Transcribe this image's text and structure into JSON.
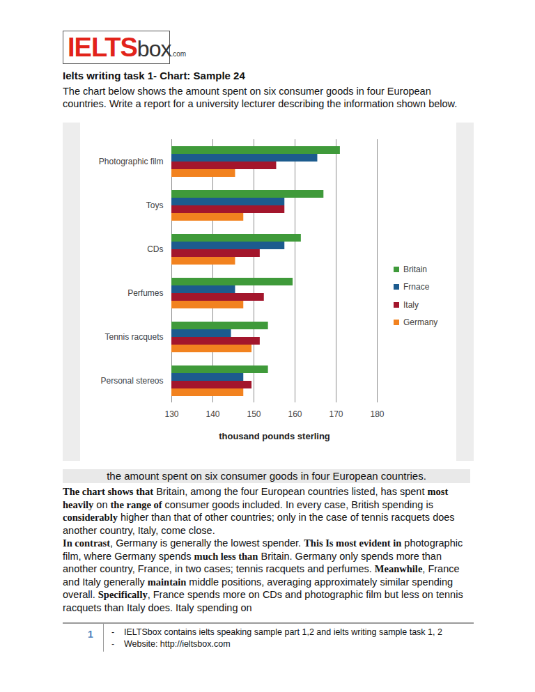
{
  "logo": {
    "main": "IELTS",
    "sub": "box",
    "suffix": ".com"
  },
  "heading": "Ielts writing task 1- Chart: Sample 24",
  "prompt": "The chart below shows the amount spent on six consumer goods in four European countries. Write a report for a university lecturer describing the information shown below.",
  "chart_data": {
    "type": "bar",
    "orientation": "horizontal",
    "title": "the amount spent on six consumer goods in four European countries.",
    "categories": [
      "Photographic film",
      "Toys",
      "CDs",
      "Perfumes",
      "Tennis racquets",
      "Personal stereos"
    ],
    "series": [
      {
        "name": "Britain",
        "color": "#3f9a3a",
        "values": [
          171,
          167,
          161.5,
          159.5,
          153.5,
          153.5
        ]
      },
      {
        "name": "Frnace",
        "color": "#1c5b8e",
        "values": [
          165.5,
          157.5,
          157.5,
          145.5,
          144.5,
          147.5
        ]
      },
      {
        "name": "Italy",
        "color": "#a3162c",
        "values": [
          155.5,
          157.5,
          151.5,
          152.5,
          151.5,
          149.5
        ]
      },
      {
        "name": "Germany",
        "color": "#f2821f",
        "values": [
          145.5,
          147.5,
          145.5,
          147.5,
          149.5,
          147.5
        ]
      }
    ],
    "xlabel": "thousand pounds sterling",
    "xlim": [
      130,
      180
    ],
    "xticks": [
      130,
      140,
      150,
      160,
      170,
      180
    ],
    "grid": true,
    "legend": "right"
  },
  "body": [
    [
      {
        "text": "The chart shows that",
        "bold": true
      },
      {
        "text": " Britain, among the four European countries listed, has spent "
      },
      {
        "text": "most heavily",
        "bold": true
      },
      {
        "text": " on "
      },
      {
        "text": "the range of",
        "bold": true
      },
      {
        "text": " consumer goods included. In every case, British spending is "
      },
      {
        "text": "considerably",
        "bold": true
      },
      {
        "text": " higher than that of other countries; only in the case of tennis racquets does another country, Italy, come close."
      }
    ],
    [
      {
        "text": "In contrast",
        "bold": true
      },
      {
        "text": ", Germany is generally the lowest spender. "
      },
      {
        "text": "This Is most evident in",
        "bold": true
      },
      {
        "text": " photographic film, where Germany spends "
      },
      {
        "text": "much less than",
        "bold": true
      },
      {
        "text": " Britain. Germany only spends more than another country, France, in two cases; tennis racquets and perfumes. "
      },
      {
        "text": "Meanwhile",
        "bold": true
      },
      {
        "text": ", France and Italy generally "
      },
      {
        "text": "maintain",
        "bold": true
      },
      {
        "text": " middle positions, averaging approximately similar spending overall. "
      },
      {
        "text": "Specifically",
        "bold": true
      },
      {
        "text": ", France spends more on CDs and photographic film but less on tennis racquets than Italy does. Italy spending on"
      }
    ]
  ],
  "footer": {
    "page_number": 1,
    "bullet": "-",
    "lines": [
      "IELTSbox contains ielts speaking sample part 1,2 and ielts writing sample task 1, 2",
      "Website: http://ieltsbox.com"
    ]
  }
}
